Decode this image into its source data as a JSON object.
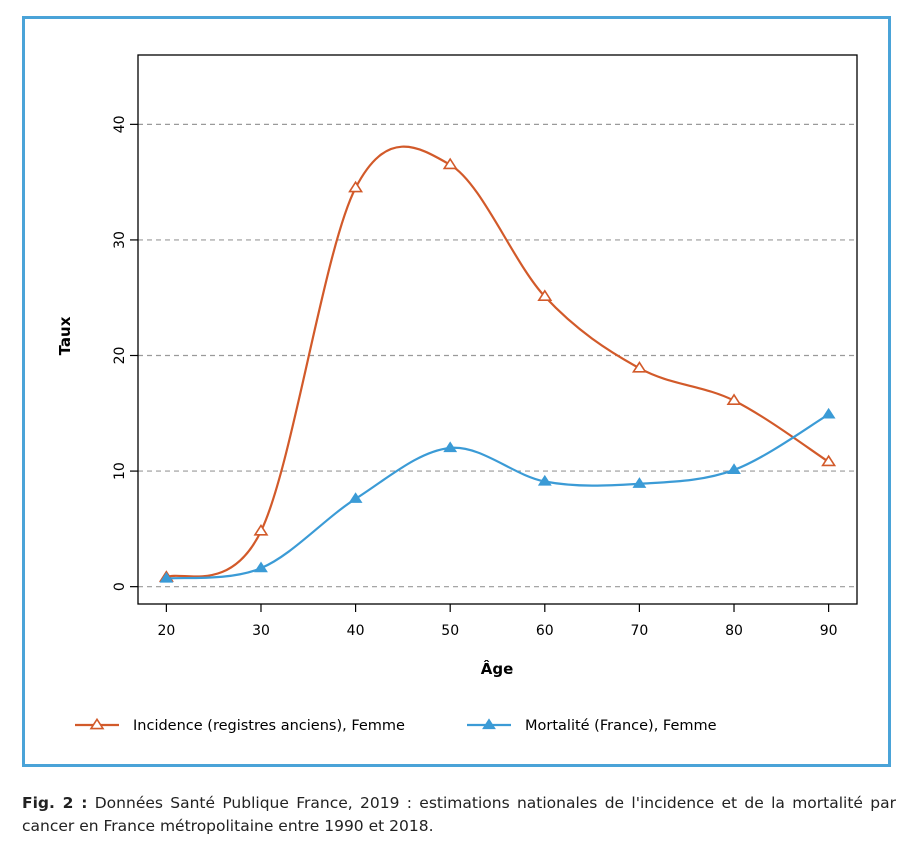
{
  "chart_data": {
    "type": "line",
    "title": "",
    "xlabel": "Âge",
    "ylabel": "Taux",
    "x": [
      20,
      30,
      40,
      50,
      60,
      70,
      80,
      90
    ],
    "xlim": [
      17,
      93
    ],
    "ylim": [
      -1.5,
      46
    ],
    "xticks": [
      "20",
      "30",
      "40",
      "50",
      "60",
      "70",
      "80",
      "90"
    ],
    "yticks": [
      "0",
      "10",
      "20",
      "30",
      "40"
    ],
    "grid": "horizontal dashed",
    "legend_position": "bottom",
    "series": [
      {
        "name": "Incidence (registres anciens), Femme",
        "color": "#d25a2a",
        "marker": "open-triangle",
        "values": [
          0.8,
          4.8,
          34.5,
          36.5,
          25.1,
          18.9,
          16.1,
          10.8
        ]
      },
      {
        "name": "Mortalité (France), Femme",
        "color": "#3b9bd6",
        "marker": "filled-triangle",
        "values": [
          0.7,
          1.6,
          7.6,
          12.0,
          9.1,
          8.9,
          10.1,
          14.9
        ]
      }
    ]
  },
  "caption": {
    "label": "Fig. 2 :",
    "text": " Données Santé Publique France, 2019 : estimations nationales de l'incidence et de la mortalité par cancer en France métropolitaine entre 1990 et 2018."
  }
}
